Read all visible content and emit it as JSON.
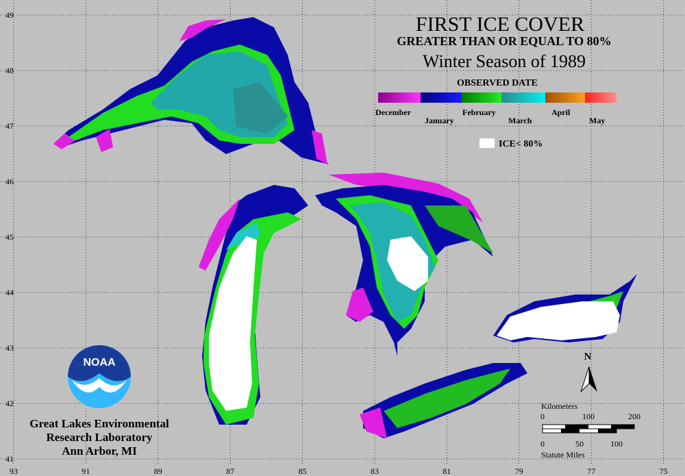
{
  "title": "FIRST ICE COVER",
  "subtitle": "GREATER THAN OR EQUAL TO 80%",
  "season": "Winter Season of 1989",
  "legend": {
    "title": "OBSERVED DATE",
    "months": [
      "December",
      "January",
      "February",
      "March",
      "April",
      "May"
    ],
    "ice_label": "ICE< 80%"
  },
  "grid": {
    "longitudes": [
      93,
      91,
      89,
      87,
      85,
      83,
      81,
      79,
      77,
      75
    ],
    "latitudes": [
      49,
      48,
      47,
      46,
      45,
      44,
      43,
      42,
      41
    ]
  },
  "north": "N",
  "scale": {
    "km_title": "Kilometers",
    "km_ticks": [
      0,
      100,
      200
    ],
    "mile_ticks": [
      0,
      50,
      100
    ],
    "mile_title": "Statute Miles"
  },
  "credit": {
    "logo": "NOAA",
    "lines": [
      "Great Lakes Environmental",
      "Research Laboratory",
      "Ann Arbor, MI"
    ]
  }
}
